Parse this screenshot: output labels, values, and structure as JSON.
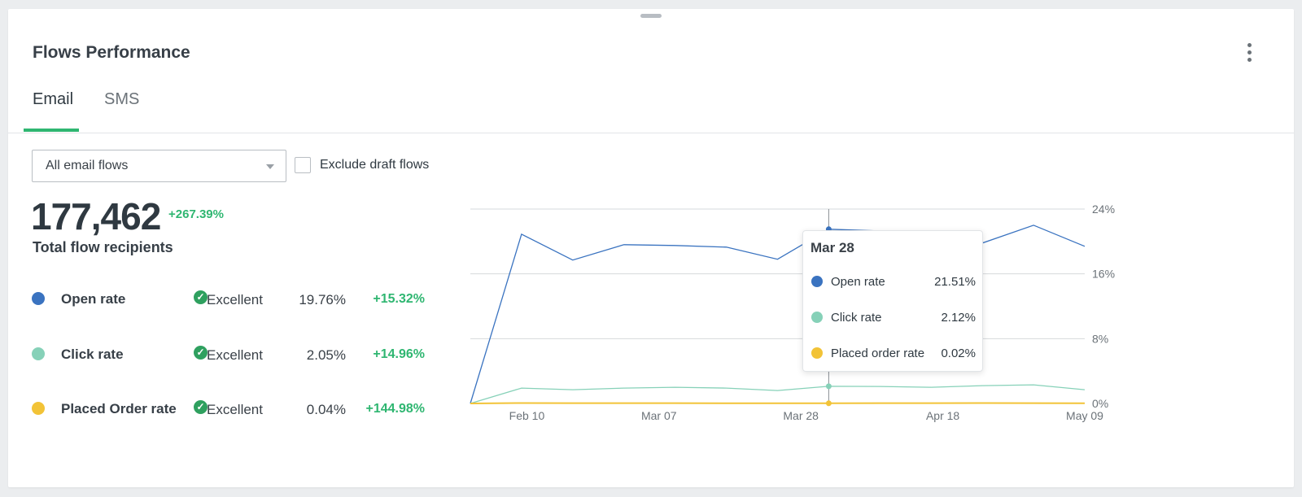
{
  "widget": {
    "title": "Flows Performance",
    "menu_icon": "kebab-menu-icon",
    "tabs": [
      {
        "label": "Email",
        "active": true
      },
      {
        "label": "SMS",
        "active": false
      }
    ],
    "accent_color": "#2fb671"
  },
  "filters": {
    "flow_select_value": "All email flows",
    "exclude_draft_label": "Exclude draft flows",
    "exclude_draft_checked": false
  },
  "summary": {
    "total": "177,462",
    "change": "+267.39%",
    "label": "Total flow recipients"
  },
  "metrics": [
    {
      "name": "Open rate",
      "color": "#3a73c0",
      "rating": "Excellent",
      "value": "19.76%",
      "change": "+15.32%"
    },
    {
      "name": "Click rate",
      "color": "#86d1b8",
      "rating": "Excellent",
      "value": "2.05%",
      "change": "+14.96%"
    },
    {
      "name": "Placed Order rate",
      "color": "#f2c337",
      "rating": "Excellent",
      "value": "0.04%",
      "change": "+144.98%"
    }
  ],
  "tooltip": {
    "date": "Mar 28",
    "rows": [
      {
        "name": "Open rate",
        "value": "21.51%",
        "color": "#3a73c0"
      },
      {
        "name": "Click rate",
        "value": "2.12%",
        "color": "#86d1b8"
      },
      {
        "name": "Placed order rate",
        "value": "0.02%",
        "color": "#f2c337"
      }
    ]
  },
  "chart_data": {
    "type": "line",
    "x_tick_labels": [
      "Feb 10",
      "Mar 07",
      "Mar 28",
      "Apr 18",
      "May 09"
    ],
    "y_tick_labels": [
      "24%",
      "16%",
      "8%",
      "0%"
    ],
    "ylim": [
      0,
      24
    ],
    "y_axis_side": "right",
    "grid": true,
    "hover_date": "Mar 28",
    "series": [
      {
        "name": "Open rate",
        "color": "#3a73c0",
        "values": [
          0,
          20.9,
          17.7,
          19.6,
          19.5,
          19.3,
          17.8,
          21.51,
          21.3,
          21.0,
          19.8,
          22.0,
          19.4
        ]
      },
      {
        "name": "Click rate",
        "color": "#86d1b8",
        "values": [
          0,
          1.9,
          1.7,
          1.9,
          2.0,
          1.9,
          1.6,
          2.12,
          2.1,
          2.0,
          2.2,
          2.3,
          1.7
        ]
      },
      {
        "name": "Placed order rate",
        "color": "#f2c337",
        "values": [
          0,
          0.05,
          0.04,
          0.04,
          0.04,
          0.03,
          0.03,
          0.02,
          0.04,
          0.04,
          0.05,
          0.04,
          0.03
        ]
      }
    ]
  }
}
